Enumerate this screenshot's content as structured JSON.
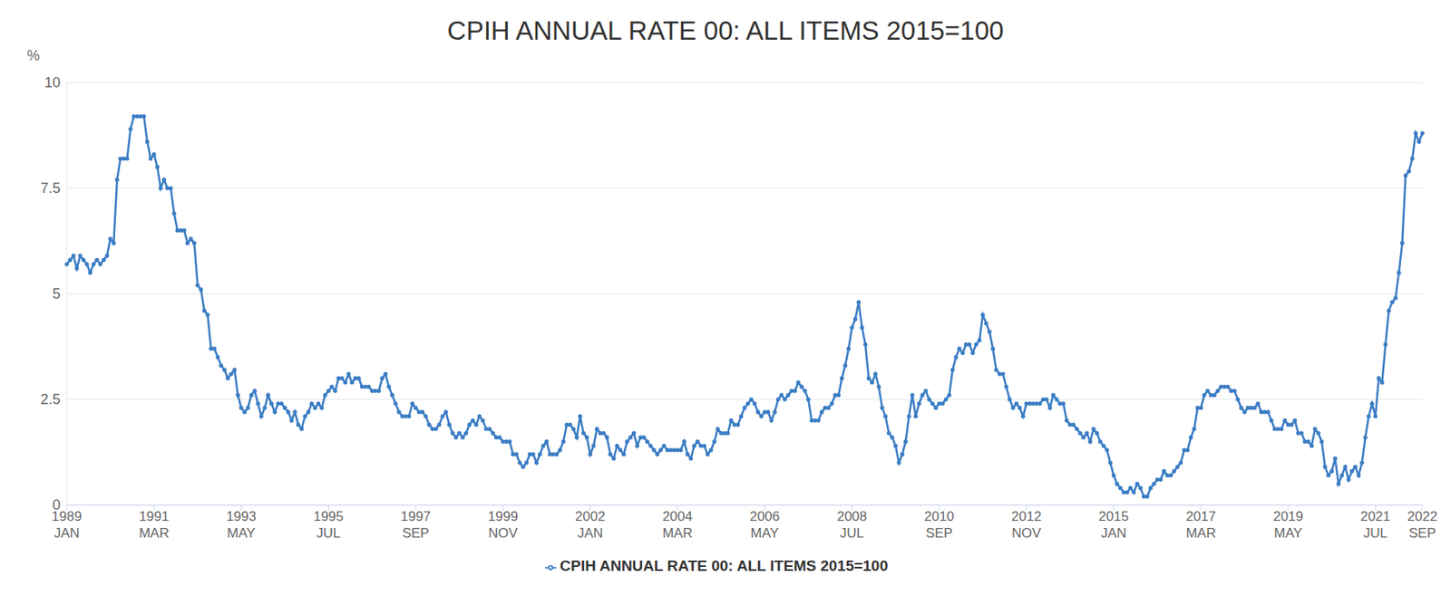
{
  "chart_data": {
    "type": "line",
    "title": "CPIH ANNUAL RATE 00: ALL ITEMS 2015=100",
    "y_label": "%",
    "categories": [
      "1989 JAN",
      null,
      null,
      null,
      null,
      null,
      null,
      null,
      null,
      null,
      null,
      null,
      null,
      null,
      null,
      null,
      null,
      null,
      null,
      null,
      null,
      null,
      null,
      null,
      null,
      null,
      "1991 MAR",
      null,
      null,
      null,
      null,
      null,
      null,
      null,
      null,
      null,
      null,
      null,
      null,
      null,
      null,
      null,
      null,
      null,
      null,
      null,
      null,
      null,
      null,
      null,
      null,
      null,
      "1993 MAY",
      null,
      null,
      null,
      null,
      null,
      null,
      null,
      null,
      null,
      null,
      null,
      null,
      null,
      null,
      null,
      null,
      null,
      null,
      null,
      null,
      null,
      null,
      null,
      null,
      null,
      "1995 JUL",
      null,
      null,
      null,
      null,
      null,
      null,
      null,
      null,
      null,
      null,
      null,
      null,
      null,
      null,
      null,
      null,
      null,
      null,
      null,
      null,
      null,
      null,
      null,
      null,
      null,
      "1997 SEP",
      null,
      null,
      null,
      null,
      null,
      null,
      null,
      null,
      null,
      null,
      null,
      null,
      null,
      null,
      null,
      null,
      null,
      null,
      null,
      null,
      null,
      null,
      null,
      null,
      null,
      "1999 NOV",
      null,
      null,
      null,
      null,
      null,
      null,
      null,
      null,
      null,
      null,
      null,
      null,
      null,
      null,
      null,
      null,
      null,
      null,
      null,
      null,
      null,
      null,
      null,
      null,
      null,
      "2002 JAN",
      null,
      null,
      null,
      null,
      null,
      null,
      null,
      null,
      null,
      null,
      null,
      null,
      null,
      null,
      null,
      null,
      null,
      null,
      null,
      null,
      null,
      null,
      null,
      null,
      null,
      "2004 MAR",
      null,
      null,
      null,
      null,
      null,
      null,
      null,
      null,
      null,
      null,
      null,
      null,
      null,
      null,
      null,
      null,
      null,
      null,
      null,
      null,
      null,
      null,
      null,
      null,
      null,
      "2006 MAY",
      null,
      null,
      null,
      null,
      null,
      null,
      null,
      null,
      null,
      null,
      null,
      null,
      null,
      null,
      null,
      null,
      null,
      null,
      null,
      null,
      null,
      null,
      null,
      null,
      null,
      "2008 JUL",
      null,
      null,
      null,
      null,
      null,
      null,
      null,
      null,
      null,
      null,
      null,
      null,
      null,
      null,
      null,
      null,
      null,
      null,
      null,
      null,
      null,
      null,
      null,
      null,
      null,
      "2010 SEP",
      null,
      null,
      null,
      null,
      null,
      null,
      null,
      null,
      null,
      null,
      null,
      null,
      null,
      null,
      null,
      null,
      null,
      null,
      null,
      null,
      null,
      null,
      null,
      null,
      null,
      "2012 NOV",
      null,
      null,
      null,
      null,
      null,
      null,
      null,
      null,
      null,
      null,
      null,
      null,
      null,
      null,
      null,
      null,
      null,
      null,
      null,
      null,
      null,
      null,
      null,
      null,
      null,
      "2015 JAN",
      null,
      null,
      null,
      null,
      null,
      null,
      null,
      null,
      null,
      null,
      null,
      null,
      null,
      null,
      null,
      null,
      null,
      null,
      null,
      null,
      null,
      null,
      null,
      null,
      null,
      "2017 MAR",
      null,
      null,
      null,
      null,
      null,
      null,
      null,
      null,
      null,
      null,
      null,
      null,
      null,
      null,
      null,
      null,
      null,
      null,
      null,
      null,
      null,
      null,
      null,
      null,
      null,
      "2019 MAY",
      null,
      null,
      null,
      null,
      null,
      null,
      null,
      null,
      null,
      null,
      null,
      null,
      null,
      null,
      null,
      null,
      null,
      null,
      null,
      null,
      null,
      null,
      null,
      null,
      null,
      "2021 JUL",
      null,
      null,
      null,
      null,
      null,
      null,
      null,
      null,
      null,
      null,
      null,
      null,
      null,
      "2022 SEP"
    ],
    "series": [
      {
        "name": "CPIH ANNUAL RATE 00: ALL ITEMS 2015=100",
        "color": "#3b7dc4",
        "marker": "circle",
        "values": [
          5.7,
          5.8,
          5.9,
          5.6,
          5.9,
          5.8,
          5.7,
          5.5,
          5.7,
          5.8,
          5.7,
          5.8,
          5.9,
          6.3,
          6.2,
          7.7,
          8.2,
          8.2,
          8.2,
          8.9,
          9.2,
          9.2,
          9.2,
          9.2,
          8.6,
          8.2,
          8.3,
          8.0,
          7.5,
          7.7,
          7.5,
          7.5,
          6.9,
          6.5,
          6.5,
          6.5,
          6.2,
          6.3,
          6.2,
          5.2,
          5.1,
          4.6,
          4.5,
          3.7,
          3.7,
          3.5,
          3.3,
          3.2,
          3.0,
          3.1,
          3.2,
          2.6,
          2.3,
          2.2,
          2.3,
          2.6,
          2.7,
          2.4,
          2.1,
          2.3,
          2.6,
          2.4,
          2.2,
          2.4,
          2.4,
          2.3,
          2.2,
          2.0,
          2.2,
          1.9,
          1.8,
          2.1,
          2.2,
          2.4,
          2.3,
          2.4,
          2.3,
          2.6,
          2.7,
          2.8,
          2.7,
          3.0,
          3.0,
          2.9,
          3.1,
          2.9,
          3.0,
          3.0,
          2.8,
          2.8,
          2.8,
          2.7,
          2.7,
          2.7,
          3.0,
          3.1,
          2.8,
          2.6,
          2.4,
          2.2,
          2.1,
          2.1,
          2.1,
          2.4,
          2.3,
          2.2,
          2.2,
          2.1,
          1.9,
          1.8,
          1.8,
          1.9,
          2.1,
          2.2,
          1.9,
          1.7,
          1.6,
          1.7,
          1.6,
          1.7,
          1.9,
          2.0,
          1.9,
          2.1,
          2.0,
          1.8,
          1.8,
          1.7,
          1.6,
          1.6,
          1.5,
          1.5,
          1.5,
          1.2,
          1.2,
          1.0,
          0.9,
          1.0,
          1.2,
          1.2,
          1.0,
          1.2,
          1.4,
          1.5,
          1.2,
          1.2,
          1.2,
          1.3,
          1.5,
          1.9,
          1.9,
          1.8,
          1.6,
          2.1,
          1.7,
          1.6,
          1.2,
          1.4,
          1.8,
          1.7,
          1.7,
          1.6,
          1.2,
          1.1,
          1.4,
          1.3,
          1.2,
          1.5,
          1.6,
          1.7,
          1.4,
          1.6,
          1.6,
          1.5,
          1.4,
          1.3,
          1.2,
          1.3,
          1.4,
          1.3,
          1.3,
          1.3,
          1.3,
          1.3,
          1.5,
          1.2,
          1.1,
          1.4,
          1.5,
          1.4,
          1.4,
          1.2,
          1.3,
          1.5,
          1.8,
          1.7,
          1.7,
          1.7,
          2.0,
          1.9,
          1.9,
          2.1,
          2.3,
          2.4,
          2.5,
          2.4,
          2.2,
          2.1,
          2.2,
          2.2,
          2.0,
          2.2,
          2.5,
          2.6,
          2.5,
          2.6,
          2.7,
          2.7,
          2.9,
          2.8,
          2.7,
          2.5,
          2.0,
          2.0,
          2.0,
          2.2,
          2.3,
          2.3,
          2.4,
          2.6,
          2.6,
          3.0,
          3.3,
          3.7,
          4.2,
          4.4,
          4.8,
          4.2,
          3.8,
          3.0,
          2.9,
          3.1,
          2.8,
          2.3,
          2.1,
          1.7,
          1.6,
          1.4,
          1.0,
          1.2,
          1.5,
          2.1,
          2.6,
          2.1,
          2.4,
          2.6,
          2.7,
          2.5,
          2.4,
          2.3,
          2.4,
          2.4,
          2.5,
          2.6,
          3.2,
          3.5,
          3.7,
          3.6,
          3.8,
          3.8,
          3.6,
          3.8,
          3.9,
          4.5,
          4.3,
          4.1,
          3.7,
          3.2,
          3.1,
          3.1,
          2.8,
          2.5,
          2.3,
          2.4,
          2.3,
          2.1,
          2.4,
          2.4,
          2.4,
          2.4,
          2.4,
          2.5,
          2.5,
          2.3,
          2.6,
          2.5,
          2.4,
          2.4,
          2.0,
          1.9,
          1.9,
          1.8,
          1.7,
          1.6,
          1.7,
          1.5,
          1.8,
          1.7,
          1.5,
          1.4,
          1.3,
          1.0,
          0.7,
          0.5,
          0.4,
          0.3,
          0.3,
          0.4,
          0.3,
          0.5,
          0.4,
          0.2,
          0.2,
          0.4,
          0.5,
          0.6,
          0.6,
          0.8,
          0.7,
          0.7,
          0.8,
          0.9,
          1.0,
          1.3,
          1.3,
          1.6,
          1.8,
          2.3,
          2.3,
          2.6,
          2.7,
          2.6,
          2.6,
          2.7,
          2.8,
          2.8,
          2.8,
          2.7,
          2.7,
          2.5,
          2.3,
          2.2,
          2.3,
          2.3,
          2.3,
          2.4,
          2.2,
          2.2,
          2.2,
          2.0,
          1.8,
          1.8,
          1.8,
          2.0,
          1.9,
          1.9,
          2.0,
          1.7,
          1.7,
          1.5,
          1.5,
          1.4,
          1.8,
          1.7,
          1.5,
          0.9,
          0.7,
          0.8,
          1.1,
          0.5,
          0.7,
          0.9,
          0.6,
          0.8,
          0.9,
          0.7,
          1.0,
          1.6,
          2.1,
          2.4,
          2.1,
          3.0,
          2.9,
          3.8,
          4.6,
          4.8,
          4.9,
          5.5,
          6.2,
          7.8,
          7.9,
          8.2,
          8.8,
          8.6,
          8.8
        ]
      }
    ],
    "ylim": [
      0,
      10
    ],
    "yticks": [
      0,
      2.5,
      5,
      7.5,
      10
    ],
    "grid": true,
    "legend": "bottom"
  }
}
